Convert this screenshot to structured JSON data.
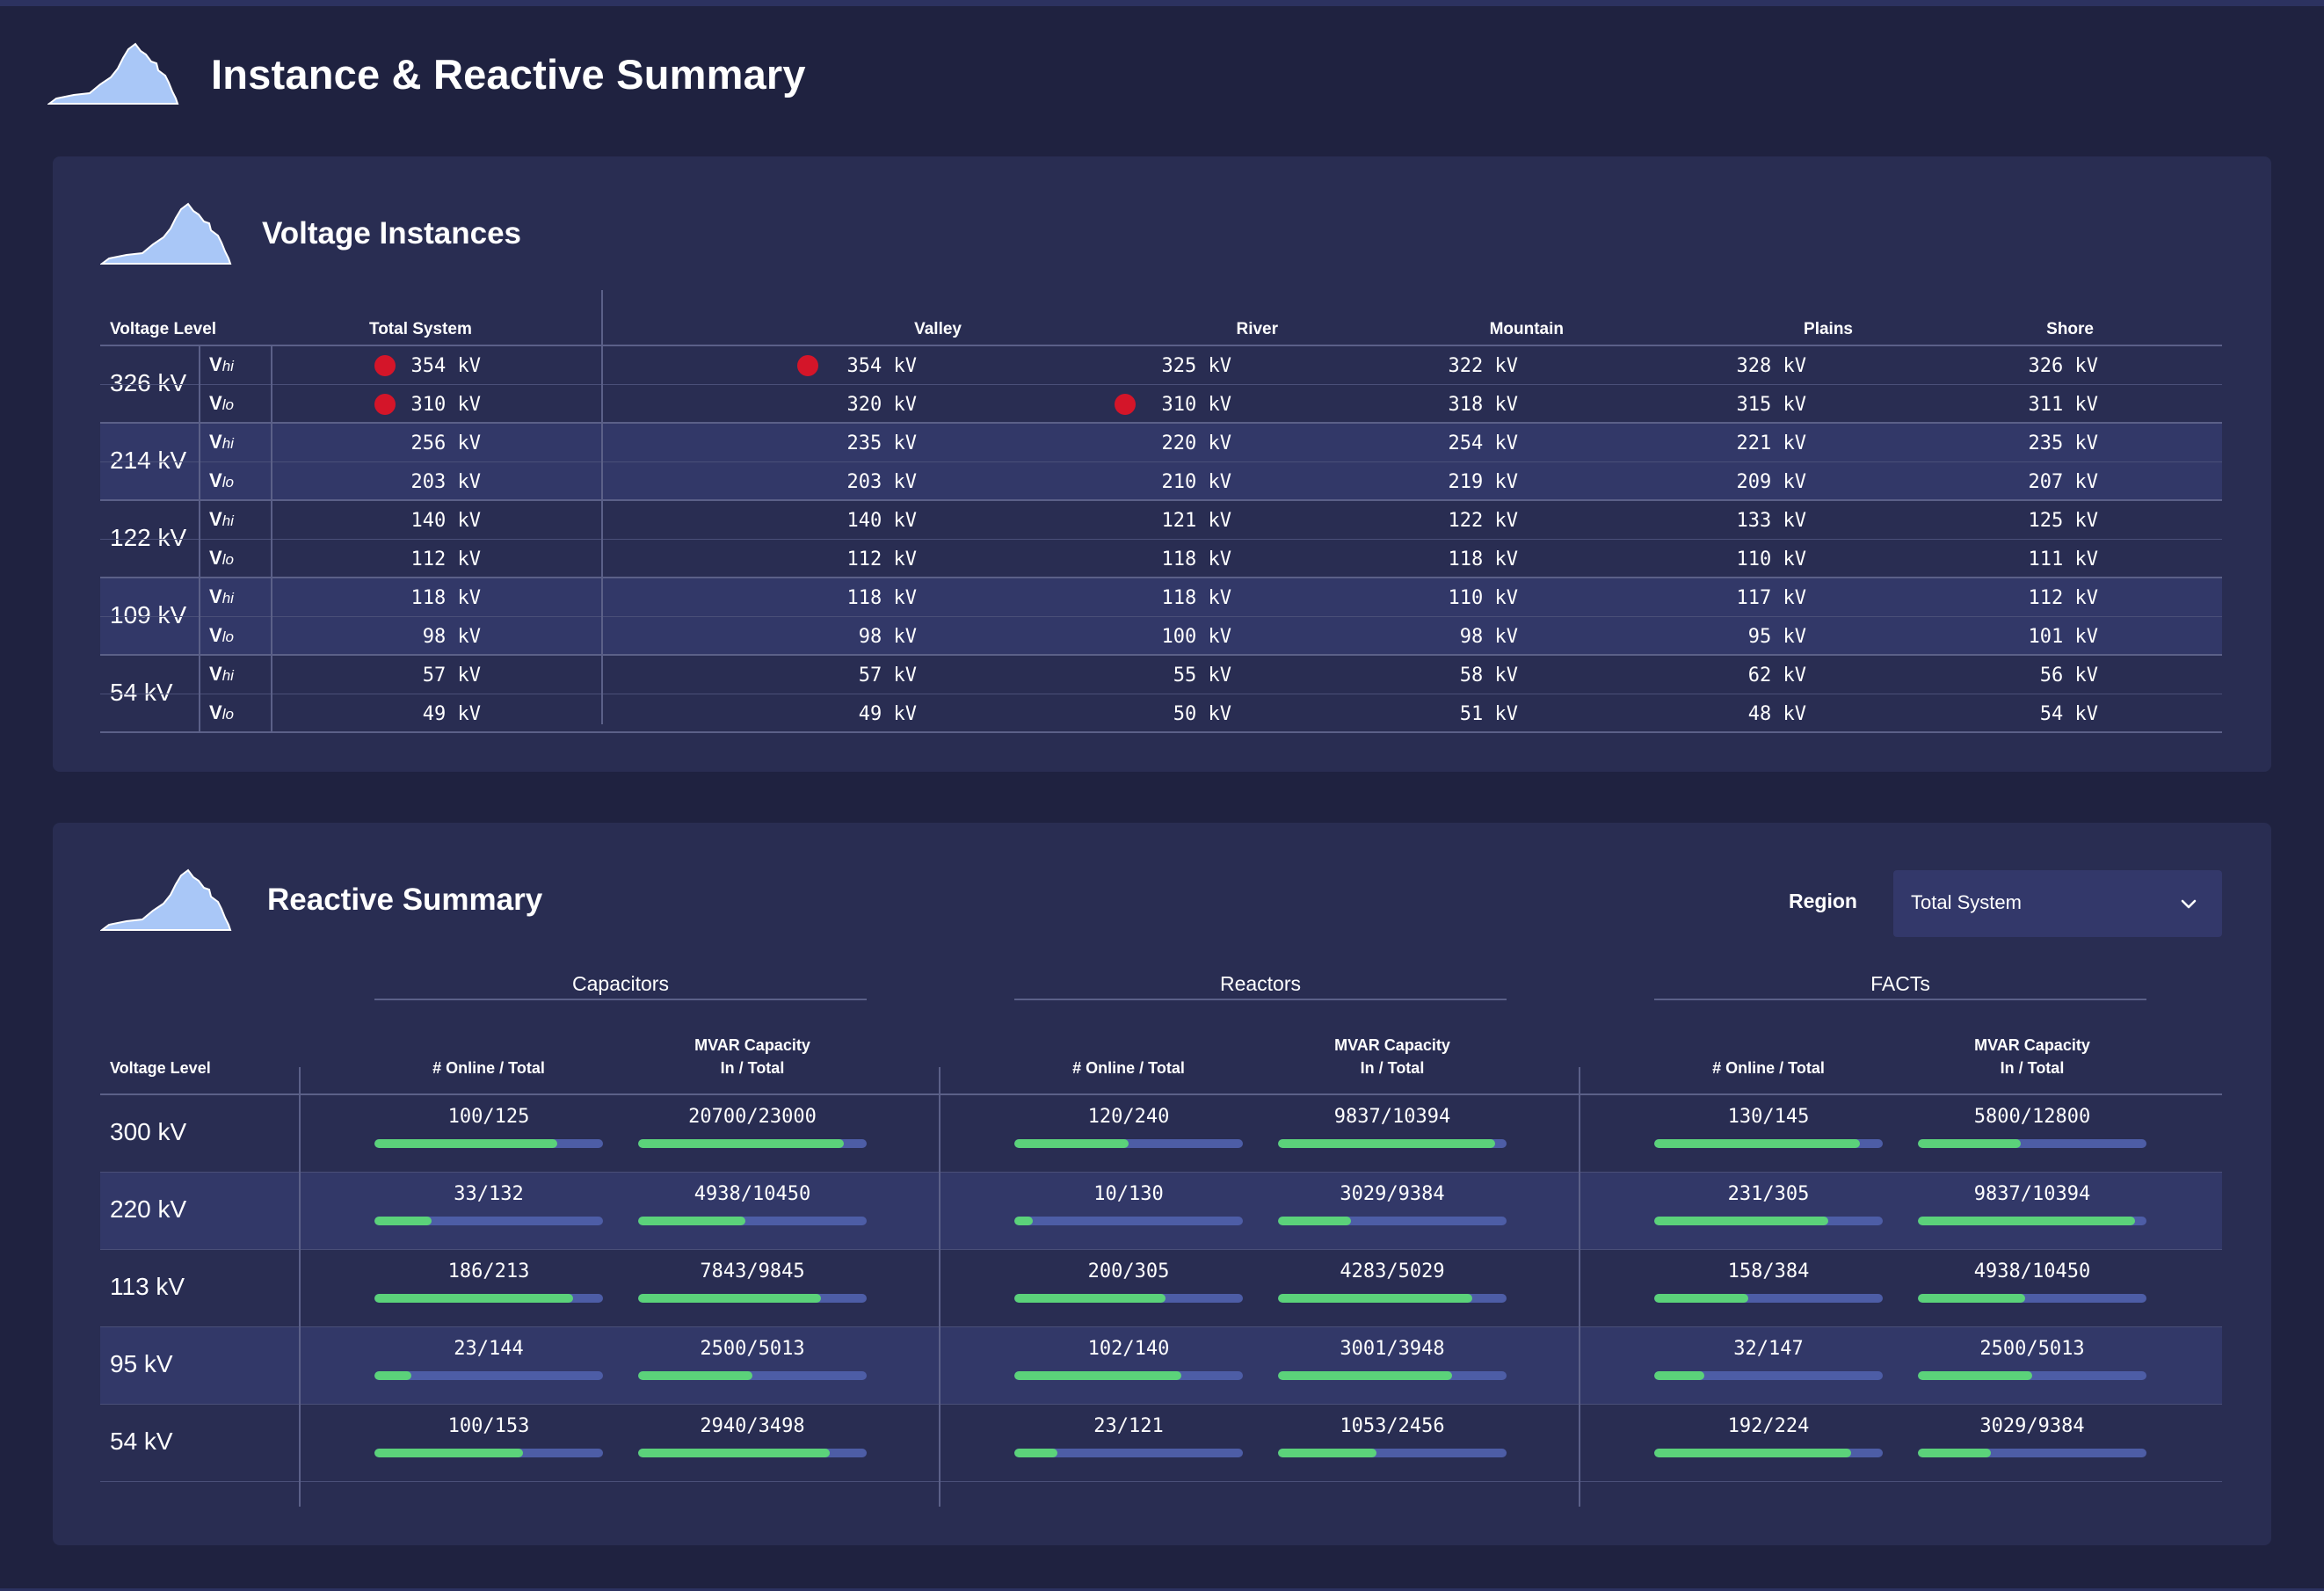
{
  "page": {
    "title": "Instance & Reactive Summary"
  },
  "voltage_instances": {
    "title": "Voltage Instances",
    "headers": {
      "level": "Voltage Level",
      "total": "Total System",
      "valley": "Valley",
      "river": "River",
      "mountain": "Mountain",
      "plains": "Plains",
      "shore": "Shore"
    },
    "sub_labels": {
      "hi_main": "V",
      "hi_sub": "hi",
      "lo_main": "V",
      "lo_sub": "lo"
    },
    "groups": [
      {
        "level": "326 kV",
        "hi": {
          "total": "354 kV",
          "valley": "354 kV",
          "river": "325 kV",
          "mountain": "322 kV",
          "plains": "328 kV",
          "shore": "326 kV"
        },
        "lo": {
          "total": "310 kV",
          "valley": "320 kV",
          "river": "310 kV",
          "mountain": "318 kV",
          "plains": "315 kV",
          "shore": "311 kV"
        },
        "alerts": {
          "hi_total": true,
          "hi_valley": true,
          "lo_total": true,
          "lo_river": true
        }
      },
      {
        "level": "214 kV",
        "hi": {
          "total": "256 kV",
          "valley": "235 kV",
          "river": "220 kV",
          "mountain": "254 kV",
          "plains": "221 kV",
          "shore": "235 kV"
        },
        "lo": {
          "total": "203 kV",
          "valley": "203 kV",
          "river": "210 kV",
          "mountain": "219 kV",
          "plains": "209 kV",
          "shore": "207 kV"
        }
      },
      {
        "level": "122 kV",
        "hi": {
          "total": "140 kV",
          "valley": "140 kV",
          "river": "121 kV",
          "mountain": "122 kV",
          "plains": "133 kV",
          "shore": "125 kV"
        },
        "lo": {
          "total": "112 kV",
          "valley": "112 kV",
          "river": "118 kV",
          "mountain": "118 kV",
          "plains": "110 kV",
          "shore": "111 kV"
        }
      },
      {
        "level": "109 kV",
        "hi": {
          "total": "118 kV",
          "valley": "118 kV",
          "river": "118 kV",
          "mountain": "110 kV",
          "plains": "117 kV",
          "shore": "112 kV"
        },
        "lo": {
          "total": "98 kV",
          "valley": "98 kV",
          "river": "100 kV",
          "mountain": "98 kV",
          "plains": "95 kV",
          "shore": "101 kV"
        }
      },
      {
        "level": "54 kV",
        "hi": {
          "total": "57 kV",
          "valley": "57 kV",
          "river": "55 kV",
          "mountain": "58 kV",
          "plains": "62 kV",
          "shore": "56 kV"
        },
        "lo": {
          "total": "49 kV",
          "valley": "49 kV",
          "river": "50 kV",
          "mountain": "51 kV",
          "plains": "48 kV",
          "shore": "54 kV"
        }
      }
    ]
  },
  "reactive_summary": {
    "title": "Reactive Summary",
    "region_label": "Region",
    "region_value": "Total System",
    "groups": {
      "capacitors": "Capacitors",
      "reactors": "Reactors",
      "facts": "FACTs"
    },
    "headers": {
      "level": "Voltage Level",
      "online": "# Online / Total",
      "mvar_line1": "MVAR Capacity",
      "mvar_line2": "In / Total"
    },
    "rows": [
      {
        "level": "300 kV",
        "cap_online": "100/125",
        "cap_online_frac": 0.8,
        "cap_mvar": "20700/23000",
        "cap_mvar_frac": 0.9,
        "rea_online": "120/240",
        "rea_online_frac": 0.5,
        "rea_mvar": "9837/10394",
        "rea_mvar_frac": 0.946,
        "fac_online": "130/145",
        "fac_online_frac": 0.897,
        "fac_mvar": "5800/12800",
        "fac_mvar_frac": 0.453
      },
      {
        "level": "220 kV",
        "cap_online": "33/132",
        "cap_online_frac": 0.25,
        "cap_mvar": "4938/10450",
        "cap_mvar_frac": 0.473,
        "rea_online": "10/130",
        "rea_online_frac": 0.077,
        "rea_mvar": "3029/9384",
        "rea_mvar_frac": 0.323,
        "fac_online": "231/305",
        "fac_online_frac": 0.757,
        "fac_mvar": "9837/10394",
        "fac_mvar_frac": 0.946
      },
      {
        "level": "113 kV",
        "cap_online": "186/213",
        "cap_online_frac": 0.873,
        "cap_mvar": "7843/9845",
        "cap_mvar_frac": 0.797,
        "rea_online": "200/305",
        "rea_online_frac": 0.656,
        "rea_mvar": "4283/5029",
        "rea_mvar_frac": 0.852,
        "fac_online": "158/384",
        "fac_online_frac": 0.411,
        "fac_mvar": "4938/10450",
        "fac_mvar_frac": 0.473
      },
      {
        "level": "95 kV",
        "cap_online": "23/144",
        "cap_online_frac": 0.16,
        "cap_mvar": "2500/5013",
        "cap_mvar_frac": 0.499,
        "rea_online": "102/140",
        "rea_online_frac": 0.729,
        "rea_mvar": "3001/3948",
        "rea_mvar_frac": 0.76,
        "fac_online": "32/147",
        "fac_online_frac": 0.218,
        "fac_mvar": "2500/5013",
        "fac_mvar_frac": 0.499
      },
      {
        "level": "54 kV",
        "cap_online": "100/153",
        "cap_online_frac": 0.654,
        "cap_mvar": "2940/3498",
        "cap_mvar_frac": 0.84,
        "rea_online": "23/121",
        "rea_online_frac": 0.19,
        "rea_mvar": "1053/2456",
        "rea_mvar_frac": 0.429,
        "fac_online": "192/224",
        "fac_online_frac": 0.857,
        "fac_mvar": "3029/9384",
        "fac_mvar_frac": 0.323
      }
    ]
  },
  "colors": {
    "background": "#1f2240",
    "panel": "#292d52",
    "row_alt": "#323868",
    "bar_track": "#4d5da6",
    "bar_fill": "#5bd27a",
    "alert": "#d41529",
    "map_icon": "#a9c7f7"
  },
  "icons": {
    "map": "virginia-map-icon",
    "dropdown": "chevron-down-icon",
    "alert": "alert-dot-icon"
  }
}
